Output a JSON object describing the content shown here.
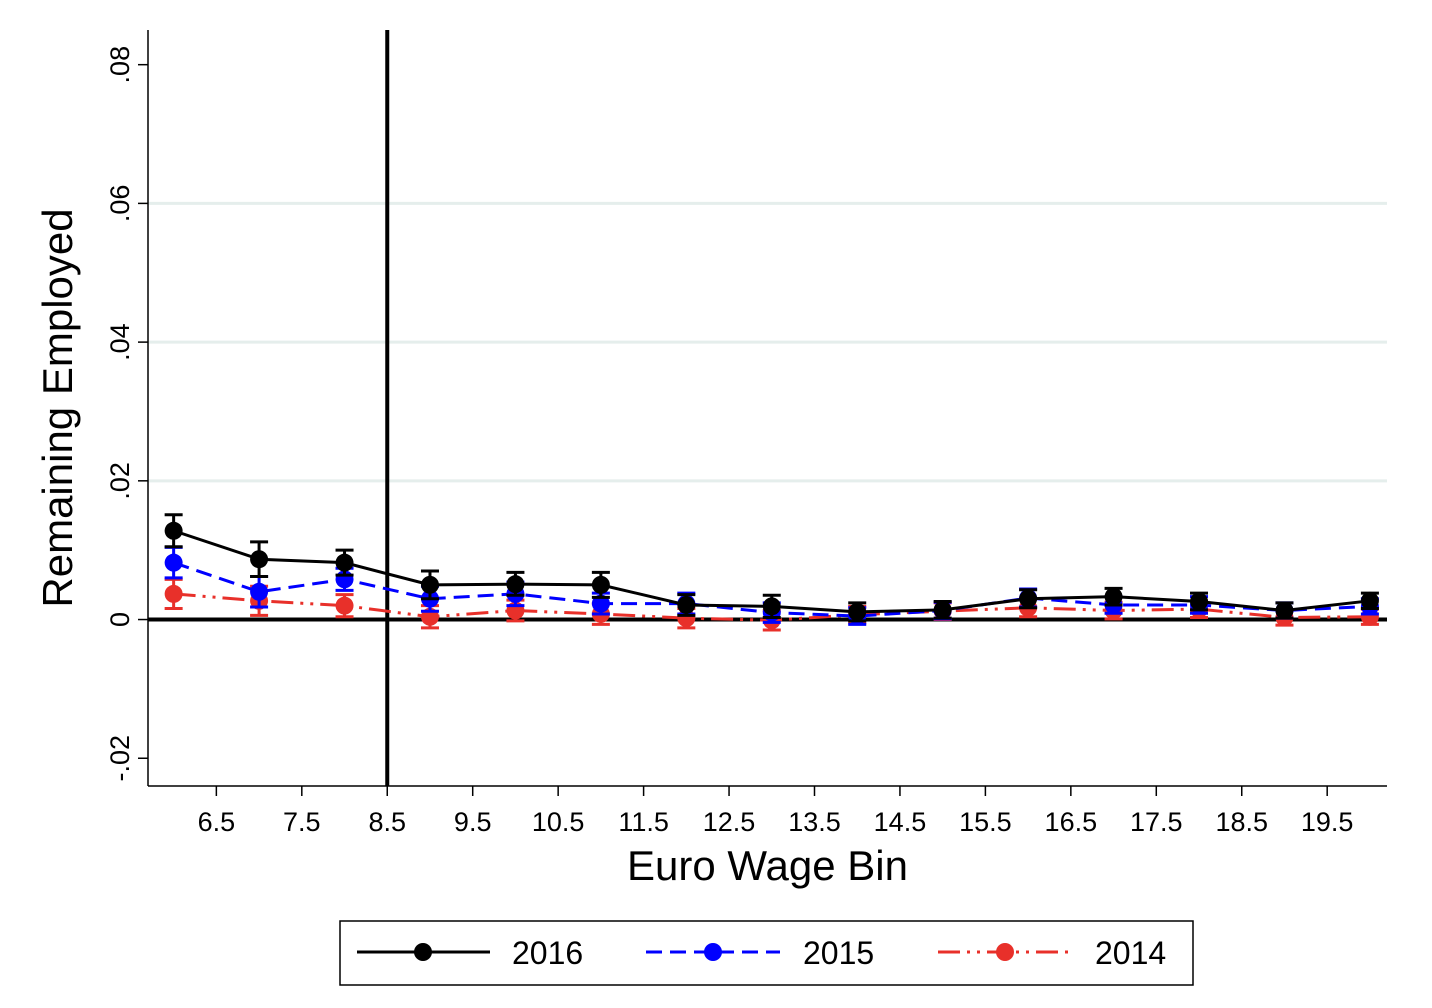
{
  "chart_data": {
    "type": "line",
    "xlabel": "Euro Wage Bin",
    "ylabel": "Remaining Employed",
    "xlim": [
      5.7,
      20.2
    ],
    "ylim": [
      -0.024,
      0.085
    ],
    "x_ticks": [
      6.5,
      7.5,
      8.5,
      9.5,
      10.5,
      11.5,
      12.5,
      13.5,
      14.5,
      15.5,
      16.5,
      17.5,
      18.5,
      19.5
    ],
    "x_tick_labels": [
      "6.5",
      "7.5",
      "8.5",
      "9.5",
      "10.5",
      "11.5",
      "12.5",
      "13.5",
      "14.5",
      "15.5",
      "16.5",
      "17.5",
      "18.5",
      "19.5"
    ],
    "y_ticks": [
      -0.02,
      0,
      0.02,
      0.04,
      0.06,
      0.08
    ],
    "y_tick_labels": [
      "-.02",
      "0",
      ".02",
      ".04",
      ".06",
      ".08"
    ],
    "gridlines_y": [
      0.02,
      0.04,
      0.06
    ],
    "vertical_line_x": 8.5,
    "horizontal_line_y": 0,
    "x": [
      6,
      7,
      8,
      9,
      10,
      11,
      12,
      13,
      14,
      15,
      16,
      17,
      18,
      19,
      20
    ],
    "legend_position": "bottom",
    "series": [
      {
        "name": "2016",
        "color": "#000000",
        "dash": "solid",
        "values": [
          0.0128,
          0.0087,
          0.0082,
          0.005,
          0.0051,
          0.005,
          0.0021,
          0.0019,
          0.0011,
          0.0014,
          0.003,
          0.0033,
          0.0026,
          0.0013,
          0.0027
        ],
        "ci_low": [
          0.0105,
          0.0062,
          0.0064,
          0.003,
          0.0035,
          0.0032,
          0.0006,
          0.0003,
          -0.0002,
          0.0002,
          0.0017,
          0.0021,
          0.0014,
          0.0002,
          0.0016
        ],
        "ci_high": [
          0.0151,
          0.0112,
          0.01,
          0.007,
          0.0068,
          0.0068,
          0.0036,
          0.0035,
          0.0024,
          0.0026,
          0.0043,
          0.0045,
          0.0038,
          0.0024,
          0.0038
        ]
      },
      {
        "name": "2015",
        "color": "#0000ff",
        "dash": "dashed",
        "values": [
          0.0082,
          0.004,
          0.0058,
          0.003,
          0.0037,
          0.0023,
          0.0023,
          0.001,
          0.0005,
          0.0013,
          0.0031,
          0.0021,
          0.0021,
          0.0013,
          0.0019
        ],
        "ci_low": [
          0.006,
          0.0018,
          0.0042,
          0.0012,
          0.002,
          0.0008,
          0.0008,
          -0.0004,
          -0.0007,
          0.0001,
          0.0018,
          0.0009,
          0.0009,
          0.0002,
          0.0008
        ],
        "ci_high": [
          0.0104,
          0.0062,
          0.0074,
          0.0048,
          0.0054,
          0.0038,
          0.0038,
          0.0024,
          0.0017,
          0.0025,
          0.0044,
          0.0033,
          0.0033,
          0.0024,
          0.003
        ]
      },
      {
        "name": "2014",
        "color": "#e8302a",
        "dash": "dashdot",
        "values": [
          0.0037,
          0.0027,
          0.002,
          0.0004,
          0.0013,
          0.0008,
          0.0002,
          -0.0001,
          0.0007,
          0.0012,
          0.0017,
          0.0013,
          0.0015,
          0.0003,
          0.0004
        ],
        "ci_low": [
          0.0016,
          0.0006,
          0.0004,
          -0.0012,
          -0.0002,
          -0.0007,
          -0.0012,
          -0.0015,
          -0.0005,
          0.0,
          0.0004,
          0.0001,
          0.0003,
          -0.0008,
          -0.0007
        ],
        "ci_high": [
          0.0058,
          0.0048,
          0.0036,
          0.002,
          0.0028,
          0.0023,
          0.0016,
          0.0013,
          0.0019,
          0.0024,
          0.003,
          0.0025,
          0.0027,
          0.0014,
          0.0015
        ]
      }
    ]
  }
}
